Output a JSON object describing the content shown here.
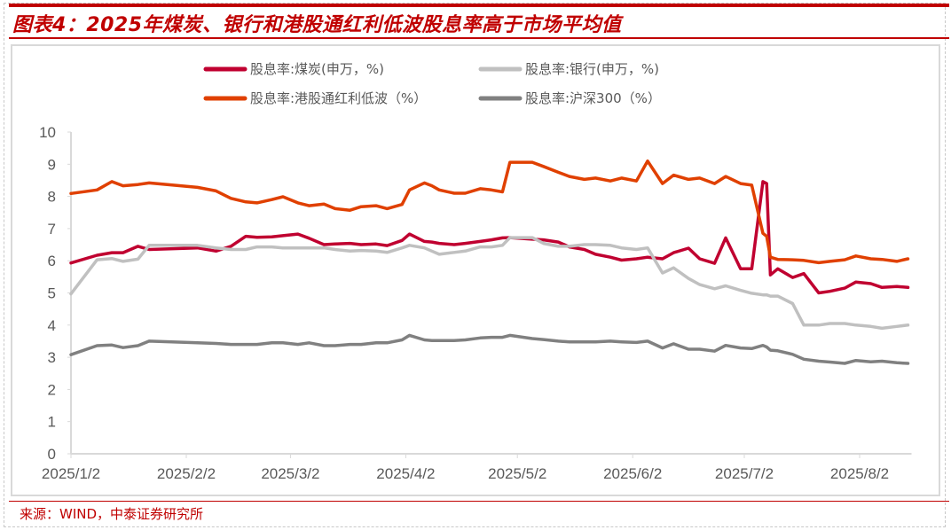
{
  "title": "图表4：2025年煤炭、银行和港股通红利低波股息率高于市场平均值",
  "source": "来源：WIND，中泰证券研究所",
  "chart_data": {
    "type": "line",
    "title": "图表4：2025年煤炭、银行和港股通红利低波股息率高于市场平均值",
    "xlabel": "",
    "ylabel": "",
    "ylim": [
      0,
      10
    ],
    "yticks": [
      "0",
      "1",
      "2",
      "3",
      "4",
      "5",
      "6",
      "7",
      "8",
      "9",
      "10"
    ],
    "xticks": [
      "2025/1/2",
      "2025/2/2",
      "2025/3/2",
      "2025/4/2",
      "2025/5/2",
      "2025/6/2",
      "2025/7/2",
      "2025/8/2"
    ],
    "xlim": [
      "2025/1/2",
      "2025/8/15"
    ],
    "grid": false,
    "legend_position": "top",
    "x": [
      "2025/1/2",
      "2025/1/9",
      "2025/1/13",
      "2025/1/16",
      "2025/1/20",
      "2025/1/23",
      "2025/2/5",
      "2025/2/10",
      "2025/2/14",
      "2025/2/18",
      "2025/2/21",
      "2025/2/25",
      "2025/2/28",
      "2025/3/4",
      "2025/3/7",
      "2025/3/11",
      "2025/3/14",
      "2025/3/18",
      "2025/3/21",
      "2025/3/25",
      "2025/3/28",
      "2025/4/1",
      "2025/4/3",
      "2025/4/7",
      "2025/4/9",
      "2025/4/11",
      "2025/4/15",
      "2025/4/18",
      "2025/4/22",
      "2025/4/25",
      "2025/4/28",
      "2025/4/30",
      "2025/5/6",
      "2025/5/9",
      "2025/5/13",
      "2025/5/16",
      "2025/5/20",
      "2025/5/23",
      "2025/5/27",
      "2025/5/30",
      "2025/6/3",
      "2025/6/6",
      "2025/6/10",
      "2025/6/13",
      "2025/6/17",
      "2025/6/20",
      "2025/6/24",
      "2025/6/27",
      "2025/7/1",
      "2025/7/4",
      "2025/7/7",
      "2025/7/8",
      "2025/7/9",
      "2025/7/11",
      "2025/7/15",
      "2025/7/18",
      "2025/7/22",
      "2025/7/25",
      "2025/7/29",
      "2025/8/1",
      "2025/8/5",
      "2025/8/8",
      "2025/8/12",
      "2025/8/15"
    ],
    "series": [
      {
        "name": "股息率:煤炭(申万，%)",
        "color": "#c00030",
        "values": [
          5.93,
          6.17,
          6.25,
          6.25,
          6.45,
          6.35,
          6.4,
          6.3,
          6.45,
          6.76,
          6.73,
          6.74,
          6.78,
          6.83,
          6.7,
          6.5,
          6.52,
          6.54,
          6.5,
          6.52,
          6.47,
          6.63,
          6.83,
          6.6,
          6.58,
          6.54,
          6.5,
          6.54,
          6.6,
          6.65,
          6.71,
          6.72,
          6.67,
          6.65,
          6.58,
          6.43,
          6.35,
          6.2,
          6.11,
          6.02,
          6.06,
          6.11,
          6.06,
          6.25,
          6.39,
          6.06,
          5.92,
          6.71,
          5.75,
          5.75,
          8.46,
          8.4,
          5.56,
          5.75,
          5.48,
          5.6,
          5.0,
          5.05,
          5.15,
          5.34,
          5.29,
          5.17,
          5.2,
          5.17
        ]
      },
      {
        "name": "股息率:银行(申万，%)",
        "color": "#c0c0c0",
        "values": [
          4.97,
          6.03,
          6.07,
          5.98,
          6.05,
          6.48,
          6.48,
          6.4,
          6.35,
          6.35,
          6.43,
          6.43,
          6.4,
          6.4,
          6.4,
          6.4,
          6.35,
          6.3,
          6.32,
          6.3,
          6.26,
          6.4,
          6.48,
          6.4,
          6.3,
          6.2,
          6.26,
          6.3,
          6.43,
          6.43,
          6.48,
          6.72,
          6.72,
          6.54,
          6.45,
          6.45,
          6.5,
          6.5,
          6.48,
          6.4,
          6.35,
          6.4,
          5.62,
          5.78,
          5.45,
          5.26,
          5.13,
          5.22,
          5.08,
          4.99,
          4.94,
          4.94,
          4.9,
          4.9,
          4.67,
          4.0,
          4.0,
          4.05,
          4.05,
          4.0,
          3.96,
          3.9,
          3.96,
          4.0
        ]
      },
      {
        "name": "股息率:港股通红利低波（%）",
        "color": "#e04000",
        "values": [
          8.09,
          8.2,
          8.46,
          8.33,
          8.37,
          8.42,
          8.28,
          8.17,
          7.94,
          7.83,
          7.8,
          7.9,
          7.99,
          7.8,
          7.71,
          7.76,
          7.62,
          7.57,
          7.68,
          7.71,
          7.62,
          7.75,
          8.2,
          8.42,
          8.33,
          8.2,
          8.1,
          8.1,
          8.24,
          8.2,
          8.14,
          9.06,
          9.06,
          8.93,
          8.75,
          8.62,
          8.53,
          8.57,
          8.48,
          8.57,
          8.48,
          9.1,
          8.4,
          8.66,
          8.53,
          8.57,
          8.4,
          8.62,
          8.4,
          8.35,
          6.85,
          6.76,
          6.11,
          6.04,
          6.03,
          6.01,
          5.94,
          5.98,
          6.03,
          6.15,
          6.06,
          6.04,
          5.98,
          6.06
        ]
      },
      {
        "name": "股息率:沪深300（%）",
        "color": "#808080",
        "values": [
          3.08,
          3.36,
          3.38,
          3.3,
          3.36,
          3.5,
          3.45,
          3.43,
          3.4,
          3.4,
          3.4,
          3.45,
          3.45,
          3.4,
          3.45,
          3.36,
          3.36,
          3.4,
          3.4,
          3.45,
          3.45,
          3.54,
          3.68,
          3.54,
          3.52,
          3.52,
          3.52,
          3.54,
          3.6,
          3.62,
          3.62,
          3.68,
          3.58,
          3.55,
          3.5,
          3.48,
          3.48,
          3.48,
          3.5,
          3.48,
          3.46,
          3.5,
          3.29,
          3.42,
          3.25,
          3.25,
          3.19,
          3.37,
          3.29,
          3.27,
          3.37,
          3.32,
          3.22,
          3.2,
          3.09,
          2.94,
          2.88,
          2.85,
          2.81,
          2.9,
          2.86,
          2.88,
          2.83,
          2.81
        ]
      }
    ]
  }
}
